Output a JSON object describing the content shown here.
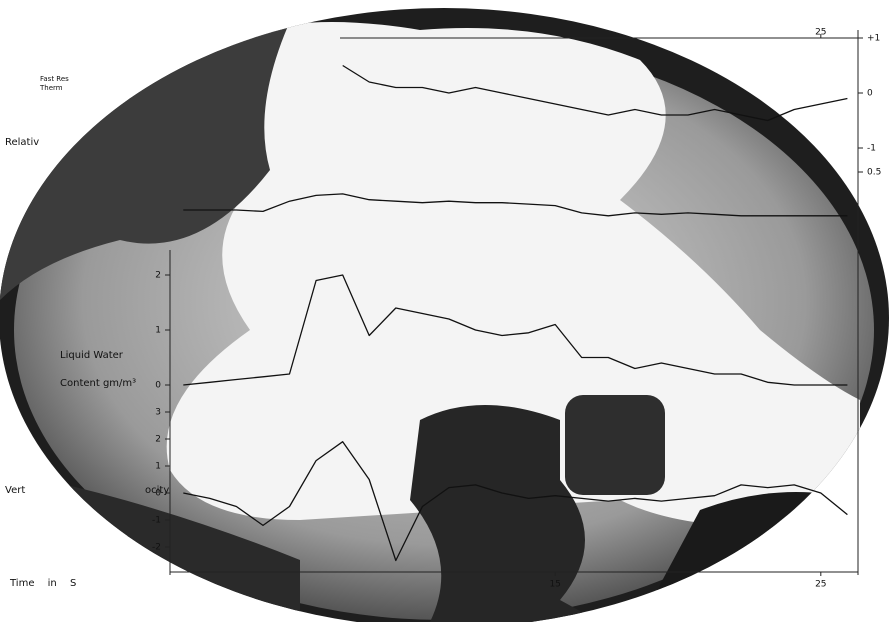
{
  "chart_data": [
    {
      "type": "line",
      "ylabel_lines": [
        "Fast Res",
        "Therm"
      ],
      "x": [
        1,
        2,
        3,
        4,
        5,
        6,
        7,
        8,
        9,
        10,
        11,
        12,
        13,
        14,
        15,
        16,
        17,
        18,
        19,
        20,
        21,
        22,
        23,
        24,
        25,
        26
      ],
      "series": [
        {
          "color": "#111111",
          "values": [
            null,
            null,
            null,
            null,
            null,
            null,
            0.5,
            0.2,
            0.1,
            0.1,
            0.0,
            0.1,
            0.0,
            -0.1,
            -0.2,
            -0.3,
            -0.4,
            -0.3,
            -0.4,
            -0.4,
            -0.3,
            -0.4,
            -0.5,
            -0.3,
            -0.2,
            -0.1
          ]
        }
      ],
      "xlim": [
        0.5,
        26.4
      ],
      "xticks": [
        25
      ],
      "ylim": [
        -1.4,
        1.1
      ],
      "yticks": [
        {
          "value": 1,
          "label": "+1"
        },
        0,
        -1
      ]
    },
    {
      "type": "line",
      "ylabel_lines": [
        "Relativ"
      ],
      "x": [
        1,
        2,
        3,
        4,
        5,
        6,
        7,
        8,
        9,
        10,
        11,
        12,
        13,
        14,
        15,
        16,
        17,
        18,
        19,
        20,
        21,
        22,
        23,
        24,
        25,
        26
      ],
      "series": [
        {
          "color": "#111111",
          "values": [
            -0.8,
            -0.8,
            -0.8,
            -0.85,
            -0.5,
            -0.3,
            -0.25,
            -0.45,
            -0.5,
            -0.55,
            -0.5,
            -0.55,
            -0.55,
            -0.6,
            -0.65,
            -0.9,
            -1.0,
            -0.9,
            -0.95,
            -0.9,
            -0.95,
            -1.0,
            -1.0,
            -1.0,
            -1.0,
            -1.0
          ]
        }
      ],
      "xlim": [
        0.5,
        26.4
      ],
      "ylim": [
        -2,
        0.5
      ],
      "yticks": [
        0.5
      ]
    },
    {
      "type": "line",
      "ylabel_lines": [
        "Liquid Water",
        "Content gm/m³"
      ],
      "x": [
        1,
        2,
        3,
        4,
        5,
        6,
        7,
        8,
        9,
        10,
        11,
        12,
        13,
        14,
        15,
        16,
        17,
        18,
        19,
        20,
        21,
        22,
        23,
        24,
        25,
        26
      ],
      "series": [
        {
          "color": "#111111",
          "values": [
            0,
            0.05,
            0.1,
            0.15,
            0.2,
            1.9,
            2.0,
            0.9,
            1.4,
            1.3,
            1.2,
            1.0,
            0.9,
            0.95,
            1.1,
            0.5,
            0.5,
            0.3,
            0.4,
            0.3,
            0.2,
            0.2,
            0.05,
            0,
            0,
            0
          ]
        }
      ],
      "xlim": [
        0.5,
        26.4
      ],
      "ylim": [
        0,
        2.3
      ],
      "yticks": [
        2,
        1,
        0
      ]
    },
    {
      "type": "line",
      "ylabel_lines": [
        "Vert",
        "ocity"
      ],
      "xlabel": "Time in S",
      "x": [
        1,
        2,
        3,
        4,
        5,
        6,
        7,
        8,
        9,
        10,
        11,
        12,
        13,
        14,
        15,
        16,
        17,
        18,
        19,
        20,
        21,
        22,
        23,
        24,
        25,
        26
      ],
      "series": [
        {
          "color": "#111111",
          "values": [
            0,
            -0.2,
            -0.5,
            -1.2,
            -0.5,
            1.2,
            1.9,
            0.5,
            -2.5,
            -0.5,
            0.2,
            0.3,
            0,
            -0.2,
            -0.1,
            -0.2,
            -0.3,
            -0.2,
            -0.3,
            -0.2,
            -0.1,
            0.3,
            0.2,
            0.3,
            0,
            -0.8
          ]
        }
      ],
      "xlim": [
        0.5,
        26.4
      ],
      "xticks": [
        15,
        25
      ],
      "ylim": [
        -2.8,
        3.2
      ],
      "yticks": [
        3,
        2,
        1,
        0,
        -1,
        -2
      ]
    }
  ]
}
